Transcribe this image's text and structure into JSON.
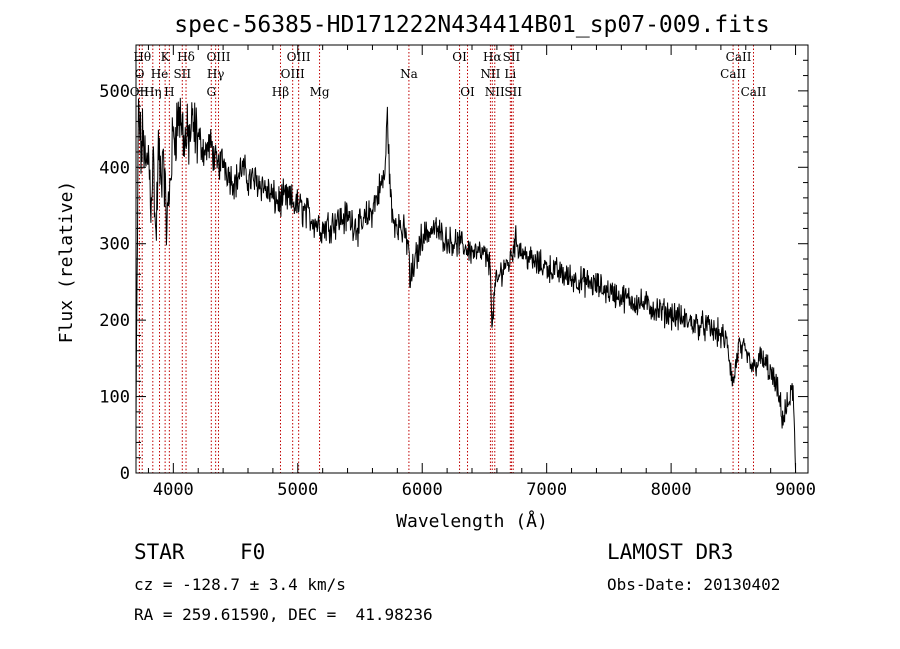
{
  "chart_data": {
    "type": "line",
    "title": "spec-56385-HD171222N434414B01_sp07-009.fits",
    "xlabel": "Wavelength (Å)",
    "ylabel": "Flux (relative)",
    "xlim": [
      3700,
      9100
    ],
    "ylim": [
      0,
      560
    ],
    "xticks": [
      4000,
      5000,
      6000,
      7000,
      8000,
      9000
    ],
    "yticks": [
      0,
      100,
      200,
      300,
      400,
      500
    ],
    "series": [
      {
        "name": "spectrum",
        "x": [
          3700,
          3720,
          3740,
          3760,
          3780,
          3800,
          3820,
          3840,
          3860,
          3880,
          3900,
          3920,
          3940,
          3960,
          3980,
          4000,
          4050,
          4100,
          4150,
          4200,
          4250,
          4300,
          4350,
          4400,
          4450,
          4500,
          4550,
          4600,
          4700,
          4800,
          4850,
          4900,
          5000,
          5100,
          5200,
          5300,
          5400,
          5500,
          5600,
          5700,
          5720,
          5740,
          5760,
          5800,
          5890,
          5900,
          6000,
          6100,
          6200,
          6300,
          6400,
          6500,
          6550,
          6563,
          6580,
          6650,
          6700,
          6750,
          6800,
          6900,
          7000,
          7100,
          7200,
          7300,
          7400,
          7500,
          7600,
          7700,
          7800,
          7900,
          8000,
          8100,
          8200,
          8300,
          8400,
          8450,
          8498,
          8542,
          8600,
          8662,
          8700,
          8750,
          8800,
          8850,
          8900,
          8950,
          8980,
          9000
        ],
        "y": [
          60,
          480,
          420,
          440,
          390,
          420,
          360,
          410,
          300,
          420,
          380,
          430,
          330,
          340,
          400,
          440,
          470,
          430,
          450,
          440,
          420,
          430,
          400,
          410,
          390,
          380,
          400,
          385,
          380,
          360,
          355,
          360,
          350,
          335,
          320,
          330,
          335,
          320,
          345,
          390,
          470,
          380,
          330,
          330,
          300,
          250,
          310,
          320,
          305,
          300,
          290,
          285,
          270,
          180,
          240,
          270,
          275,
          305,
          290,
          275,
          270,
          262,
          255,
          250,
          245,
          238,
          230,
          225,
          220,
          212,
          208,
          200,
          195,
          190,
          180,
          170,
          115,
          165,
          155,
          135,
          150,
          145,
          130,
          110,
          70,
          95,
          110,
          0
        ]
      }
    ],
    "lines": [
      {
        "name": "OII",
        "w": 3727,
        "row": 3
      },
      {
        "name": "Hθ",
        "w": 3750,
        "row": 1
      },
      {
        "name": "O",
        "w": 3728,
        "row": 2
      },
      {
        "name": "Hη",
        "w": 3835,
        "row": 3
      },
      {
        "name": "He",
        "w": 3889,
        "row": 2
      },
      {
        "name": "K",
        "w": 3934,
        "row": 1
      },
      {
        "name": "H",
        "w": 3968,
        "row": 3
      },
      {
        "name": "SII",
        "w": 4072,
        "row": 2
      },
      {
        "name": "Hδ",
        "w": 4102,
        "row": 1
      },
      {
        "name": "G",
        "w": 4305,
        "row": 3
      },
      {
        "name": "Hγ",
        "w": 4340,
        "row": 2
      },
      {
        "name": "OIII",
        "w": 4363,
        "row": 1
      },
      {
        "name": "Hβ",
        "w": 4861,
        "row": 3
      },
      {
        "name": "OIII",
        "w": 4959,
        "row": 2
      },
      {
        "name": "OIII",
        "w": 5007,
        "row": 1
      },
      {
        "name": "Mg",
        "w": 5175,
        "row": 3
      },
      {
        "name": "Na",
        "w": 5893,
        "row": 2
      },
      {
        "name": "OI",
        "w": 6300,
        "row": 1
      },
      {
        "name": "OI",
        "w": 6364,
        "row": 3
      },
      {
        "name": "NII",
        "w": 6548,
        "row": 2
      },
      {
        "name": "Hα",
        "w": 6563,
        "row": 1
      },
      {
        "name": "NII",
        "w": 6583,
        "row": 3
      },
      {
        "name": "Li",
        "w": 6708,
        "row": 2
      },
      {
        "name": "SII",
        "w": 6717,
        "row": 1
      },
      {
        "name": "SII",
        "w": 6731,
        "row": 3
      },
      {
        "name": "CaII",
        "w": 8498,
        "row": 2
      },
      {
        "name": "CaII",
        "w": 8542,
        "row": 1
      },
      {
        "name": "CaII",
        "w": 8662,
        "row": 3
      }
    ]
  },
  "info": {
    "object_class": "STAR",
    "subclass": "F0",
    "survey": "LAMOST DR3",
    "cz": "cz = -128.7 ± 3.4 km/s",
    "obs_date": "Obs-Date: 20130402",
    "coords": "RA = 259.61590, DEC =  41.98236"
  },
  "colors": {
    "spectrum": "#000000",
    "line_markers": "#c00000",
    "axes": "#000000"
  }
}
